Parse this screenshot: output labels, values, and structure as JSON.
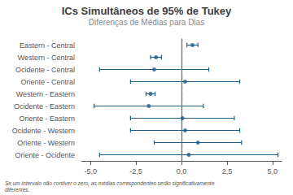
{
  "chart_data": {
    "type": "interval",
    "title": "ICs Simultâneos de 95% de Tukey",
    "subtitle": "Diferenças de Médias para Dias",
    "annotation": "Se um intervalo não contiver o zero, as médias correspondentes serão significativamente\ndiferentes.",
    "orientation": "horizontal",
    "categories": [
      "Eastern - Central",
      "Western - Central",
      "Ocidente - Central",
      "Oriente - Central",
      "Western - Eastern",
      "Ocidente - Eastern",
      "Oriente - Eastern",
      "Ocidente - Western",
      "Oriente - Western",
      "Oriente - Ocidente"
    ],
    "values": [
      0.6,
      -1.4,
      -1.5,
      0.2,
      -1.7,
      -1.8,
      0.05,
      0.2,
      0.9,
      0.4
    ],
    "lower": [
      0.3,
      -1.7,
      -4.5,
      -2.8,
      -1.95,
      -4.8,
      -2.8,
      -2.8,
      -1.5,
      -4.5
    ],
    "upper": [
      0.9,
      -1.1,
      1.5,
      3.2,
      -1.45,
      1.2,
      2.9,
      3.2,
      3.3,
      5.3
    ],
    "color": "#1f5f8b",
    "marker": "circle",
    "reference_line": {
      "value": 0,
      "color": "#3a7d44",
      "line_style": "dashed"
    },
    "xlim": [
      -5.5,
      5.5
    ],
    "xticks": [
      {
        "value": -5.0,
        "label": "-5,0"
      },
      {
        "value": -2.5,
        "label": "-2,5"
      },
      {
        "value": 0.0,
        "label": "0,0"
      },
      {
        "value": 2.5,
        "label": "2,5"
      },
      {
        "value": 5.0,
        "label": "5,0"
      }
    ],
    "grid": false
  }
}
